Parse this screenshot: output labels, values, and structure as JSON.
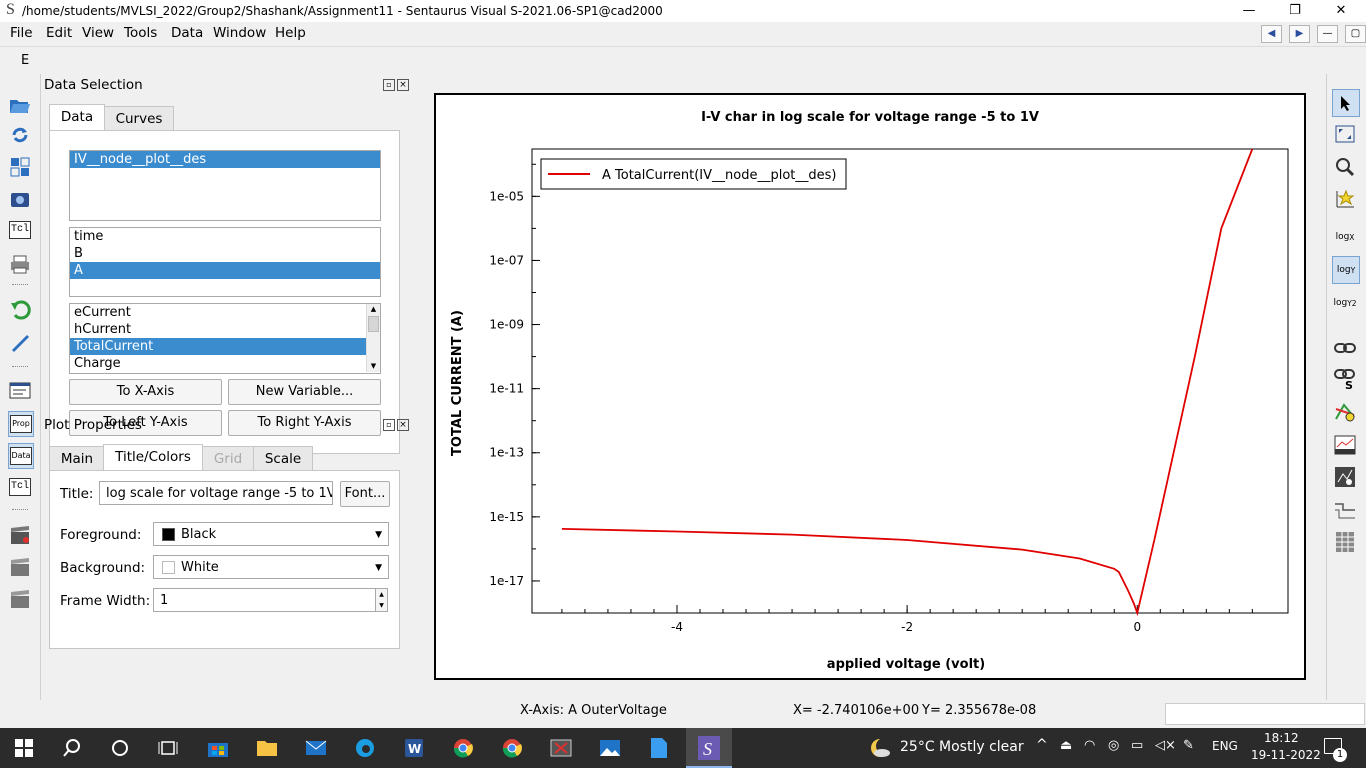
{
  "window": {
    "app_icon": "S",
    "title": "/home/students/MVLSI_2022/Group2/Shashank/Assignment11 - Sentaurus Visual S-2021.06-SP1@cad2000",
    "controls": {
      "minimize": "—",
      "restore": "❐",
      "close": "✕"
    }
  },
  "menu": [
    "File",
    "Edit",
    "View",
    "Tools",
    "Data",
    "Window",
    "Help"
  ],
  "toolbar_row": {
    "label": "E"
  },
  "data_selection": {
    "title": "Data Selection",
    "tabs": [
      "Data",
      "Curves"
    ],
    "datasets": [
      "IV__node__plot__des"
    ],
    "groups": [
      "time",
      "B",
      "A"
    ],
    "variables": [
      "eCurrent",
      "hCurrent",
      "TotalCurrent",
      "Charge"
    ],
    "buttons": {
      "x_axis": "To X-Axis",
      "new_variable": "New Variable...",
      "left_y": "To Left Y-Axis",
      "right_y": "To Right Y-Axis"
    }
  },
  "plot_properties": {
    "title": "Plot Properties",
    "tabs": [
      "Main",
      "Title/Colors",
      "Grid",
      "Scale"
    ],
    "title_label": "Title:",
    "title_value": "log scale for voltage range -5 to 1V",
    "font_button": "Font...",
    "foreground_label": "Foreground:",
    "foreground_value": "Black",
    "background_label": "Background:",
    "background_value": "White",
    "frame_width_label": "Frame Width:",
    "frame_width_value": "1"
  },
  "chart_data": {
    "type": "line",
    "title": "I-V char in log scale for voltage range -5 to 1V",
    "xlabel": "applied voltage (volt)",
    "ylabel": "TOTAL CURRENT (A)",
    "y_scale": "log",
    "xlim": [
      -5.26,
      1.31
    ],
    "ylim": [
      1e-18,
      0.0003
    ],
    "x_ticks": [
      "-4",
      "-2",
      "0"
    ],
    "y_ticks": [
      "1e-05",
      "1e-07",
      "1e-09",
      "1e-11",
      "1e-13",
      "1e-15",
      "1e-17"
    ],
    "legend_position": "top-left",
    "series": [
      {
        "name": "A TotalCurrent(IV__node__plot__des)",
        "color": "#e00000",
        "x": [
          -5.0,
          -4.0,
          -3.0,
          -2.0,
          -1.0,
          -0.5,
          -0.2,
          -0.16,
          -0.08,
          -0.03,
          0.0,
          0.15,
          0.5,
          0.73,
          1.0
        ],
        "y": [
          4.2e-16,
          3.5e-16,
          2.8e-16,
          1.9e-16,
          9.5e-17,
          5e-17,
          2.4e-17,
          1.9e-17,
          5e-18,
          2e-18,
          1e-18,
          2e-16,
          1e-10,
          1e-06,
          0.0003
        ]
      }
    ]
  },
  "status": {
    "x_axis": "X-Axis: A OuterVoltage",
    "coord_x": "X= -2.740106e+00",
    "coord_y": "Y= 2.355678e-08"
  },
  "taskbar": {
    "weather": "25°C  Mostly clear",
    "lang": "ENG",
    "time": "18:12",
    "date": "19-11-2022",
    "notifications": "1"
  }
}
